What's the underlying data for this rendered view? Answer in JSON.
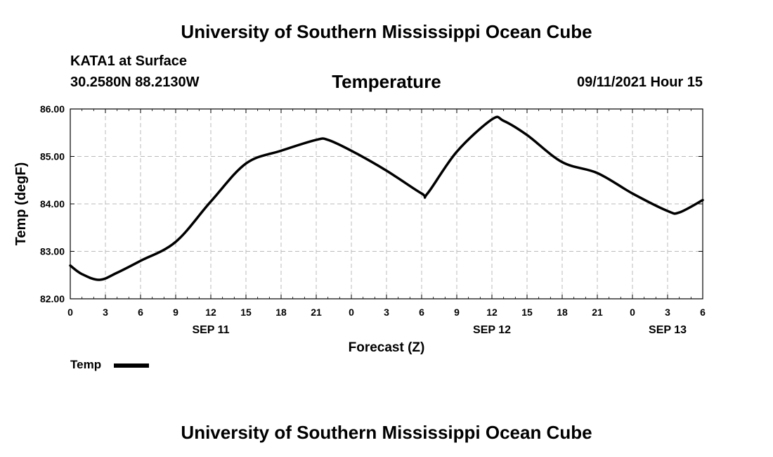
{
  "header": {
    "title": "University of Southern Mississippi Ocean Cube",
    "station": "KATA1 at Surface",
    "coordinates": "30.2580N  88.2130W",
    "variable": "Temperature",
    "datetime": "09/11/2021 Hour 15"
  },
  "footer": {
    "title": "University of Southern Mississippi Ocean Cube"
  },
  "legend": {
    "label": "Temp"
  },
  "chart_data": {
    "type": "line",
    "xlabel": "Forecast (Z)",
    "ylabel": "Temp (degF)",
    "x_hours_range": [
      0,
      54
    ],
    "ylim": [
      82.0,
      86.0
    ],
    "y_ticks": [
      "82.00",
      "83.00",
      "84.00",
      "85.00",
      "86.00"
    ],
    "y_tick_values": [
      82,
      83,
      84,
      85,
      86
    ],
    "x_tick_labels": [
      "0",
      "3",
      "6",
      "9",
      "12",
      "15",
      "18",
      "21",
      "0",
      "3",
      "6",
      "9",
      "12",
      "15",
      "18",
      "21",
      "0",
      "3",
      "6"
    ],
    "date_labels": [
      {
        "label": "SEP 11",
        "hour": 12
      },
      {
        "label": "SEP 12",
        "hour": 36
      },
      {
        "label": "SEP 13",
        "hour": 51
      }
    ],
    "grid": true,
    "series": [
      {
        "name": "Temp",
        "color": "#000000",
        "x": [
          0,
          1,
          2.5,
          4,
          6,
          9,
          12,
          15,
          18,
          21,
          22,
          24,
          27,
          30,
          30.5,
          33,
          36,
          37,
          39,
          42,
          45,
          48,
          51,
          52,
          54
        ],
        "values": [
          82.7,
          82.52,
          82.4,
          82.55,
          82.8,
          83.2,
          84.05,
          84.85,
          85.12,
          85.35,
          85.35,
          85.12,
          84.7,
          84.22,
          84.22,
          85.1,
          85.78,
          85.75,
          85.45,
          84.88,
          84.65,
          84.22,
          83.85,
          83.82,
          84.08
        ]
      }
    ]
  }
}
